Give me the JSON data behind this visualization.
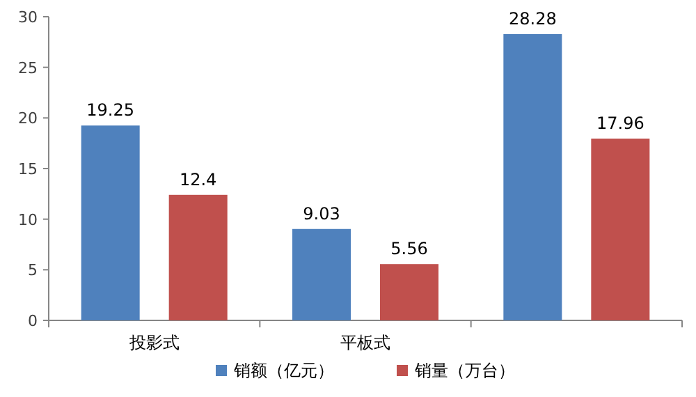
{
  "chart_data": {
    "type": "bar",
    "categories": [
      "投影式",
      "平板式",
      null
    ],
    "series": [
      {
        "name": "销额（亿元）",
        "color": "#4f81bd",
        "values": [
          19.25,
          9.03,
          28.28
        ]
      },
      {
        "name": "销量（万台）",
        "color": "#c0504d",
        "values": [
          12.4,
          5.56,
          17.96
        ]
      }
    ],
    "ylim": [
      0,
      30
    ],
    "yticks": [
      0,
      5,
      10,
      15,
      20,
      25,
      30
    ],
    "data_labels": true,
    "legend": "bottom",
    "grid": false
  }
}
